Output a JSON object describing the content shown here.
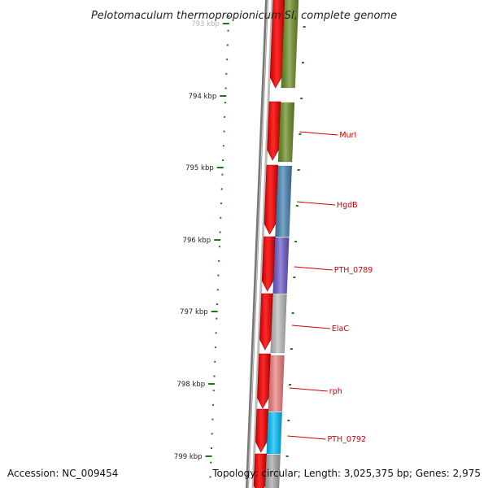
{
  "title": "Pelotomaculum thermopropionicum SI, complete genome",
  "accession_label": "Accession: NC_009454",
  "summary_label": "Topology: circular; Length: 3,025,375 bp; Genes: 2,975",
  "scale": {
    "tick_labels": [
      "793 kbp",
      "794 kbp",
      "795 kbp",
      "796 kbp",
      "797 kbp",
      "798 kbp",
      "799 kbp"
    ]
  },
  "genes": [
    {
      "label": "MurI",
      "color": "#6b8e23"
    },
    {
      "label": "HgdB",
      "color": "#4682b4"
    },
    {
      "label": "PTH_0789",
      "color": "#6a5acd"
    },
    {
      "label": "ElaC",
      "color": "#bdbdbd"
    },
    {
      "label": "rph",
      "color": "#f08080"
    },
    {
      "label": "PTH_0792",
      "color": "#00bfff"
    }
  ],
  "colors": {
    "strand_arrow": "#ff0000",
    "tick": "#1a7a1a",
    "label_line": "#cc0000",
    "backbone": "#808080",
    "gene_upper": "#6b8e23",
    "gene_lower": "#a9a9a9"
  }
}
